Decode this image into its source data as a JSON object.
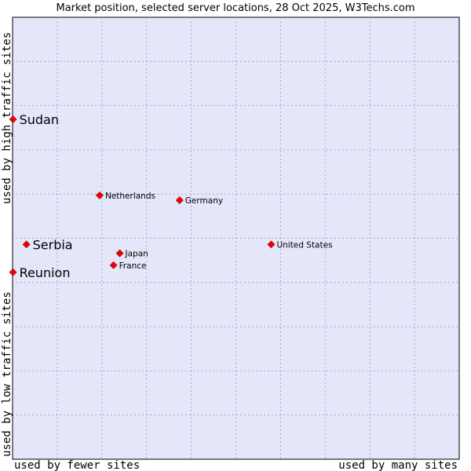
{
  "chart_data": {
    "type": "scatter",
    "title": "Market position, selected server locations, 28 Oct 2025, W3Techs.com",
    "xlabel_left": "used by fewer sites",
    "xlabel_right": "used by many sites",
    "ylabel_top": "used by high traffic sites",
    "ylabel_bottom": "used by low traffic sites",
    "xlim": [
      0,
      100
    ],
    "ylim": [
      0,
      100
    ],
    "grid": true,
    "point_color": "#ee0000",
    "plot_background": "#e4e6fa",
    "points": [
      {
        "label": "Sudan",
        "x": 0.1,
        "y": 76.9,
        "emphasis": true
      },
      {
        "label": "Netherlands",
        "x": 19.5,
        "y": 59.7,
        "emphasis": false
      },
      {
        "label": "Germany",
        "x": 37.4,
        "y": 58.6,
        "emphasis": false
      },
      {
        "label": "Serbia",
        "x": 3.1,
        "y": 48.6,
        "emphasis": true
      },
      {
        "label": "United States",
        "x": 57.9,
        "y": 48.6,
        "emphasis": false
      },
      {
        "label": "Japan",
        "x": 24.0,
        "y": 46.6,
        "emphasis": false
      },
      {
        "label": "France",
        "x": 22.6,
        "y": 43.9,
        "emphasis": false
      },
      {
        "label": "Reunion",
        "x": 0.1,
        "y": 42.3,
        "emphasis": true
      }
    ]
  }
}
